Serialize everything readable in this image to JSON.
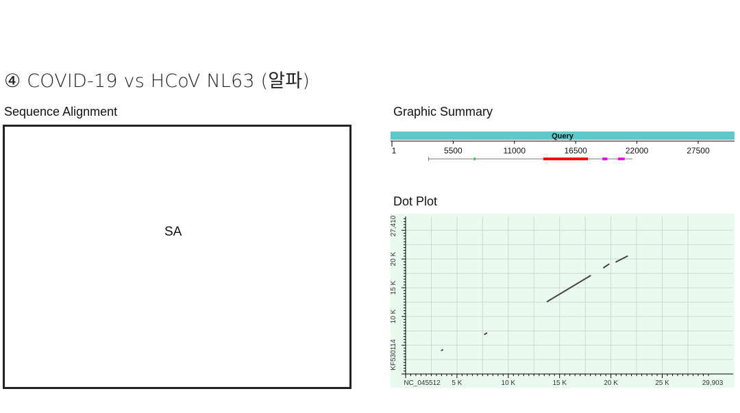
{
  "slide": {
    "title": "④ COVID-19 vs HCoV NL63 (알파)",
    "left_panel_label": "Sequence Alignment",
    "sa_placeholder": "SA",
    "graphic_summary_label": "Graphic Summary",
    "dot_plot_label": "Dot Plot"
  },
  "graphic_summary": {
    "bar_label": "Query",
    "bar_color": "#5ec8c8",
    "ticks": [
      {
        "value": 1,
        "label": "1"
      },
      {
        "value": 5500,
        "label": "5500"
      },
      {
        "value": 11000,
        "label": "11000"
      },
      {
        "value": 16500,
        "label": "16500"
      },
      {
        "value": 22000,
        "label": "22000"
      },
      {
        "value": 27500,
        "label": "27500"
      }
    ],
    "axis_max": 29903,
    "hit_line": {
      "start": 3300,
      "end": 21600
    },
    "segments": [
      {
        "start": 7350,
        "end": 7500,
        "color": "#33cc33"
      },
      {
        "start": 13600,
        "end": 17600,
        "color": "#ff0000"
      },
      {
        "start": 18900,
        "end": 19350,
        "color": "#ff00ff"
      },
      {
        "start": 20300,
        "end": 20900,
        "color": "#ff00ff"
      }
    ]
  },
  "chart_data": {
    "type": "scatter",
    "background": "#eafaee",
    "grid": true,
    "xlim": [
      0,
      29903
    ],
    "ylim": [
      0,
      27410
    ],
    "x_ticks": [
      {
        "value": 0,
        "label": "NC_045512"
      },
      {
        "value": 5000,
        "label": "5 K"
      },
      {
        "value": 10000,
        "label": "10 K"
      },
      {
        "value": 15000,
        "label": "15 K"
      },
      {
        "value": 20000,
        "label": "20 K"
      },
      {
        "value": 25000,
        "label": "25 K"
      },
      {
        "value": 29903,
        "label": "29,903"
      }
    ],
    "y_ticks": [
      {
        "value": 0,
        "label": "KF530114"
      },
      {
        "value": 10000,
        "label": "10 K"
      },
      {
        "value": 15000,
        "label": "15 K"
      },
      {
        "value": 20000,
        "label": "20 K"
      },
      {
        "value": 27410,
        "label": "27,410"
      }
    ],
    "segments": [
      {
        "x": [
          13800,
          18000
        ],
        "y": [
          12600,
          17100
        ]
      },
      {
        "x": [
          19300,
          19800
        ],
        "y": [
          18500,
          19100
        ]
      },
      {
        "x": [
          20500,
          21600
        ],
        "y": [
          19500,
          20500
        ]
      },
      {
        "x": [
          7700,
          7900
        ],
        "y": [
          6900,
          7100
        ]
      },
      {
        "x": [
          3500,
          3600
        ],
        "y": [
          4100,
          4200
        ]
      }
    ]
  }
}
